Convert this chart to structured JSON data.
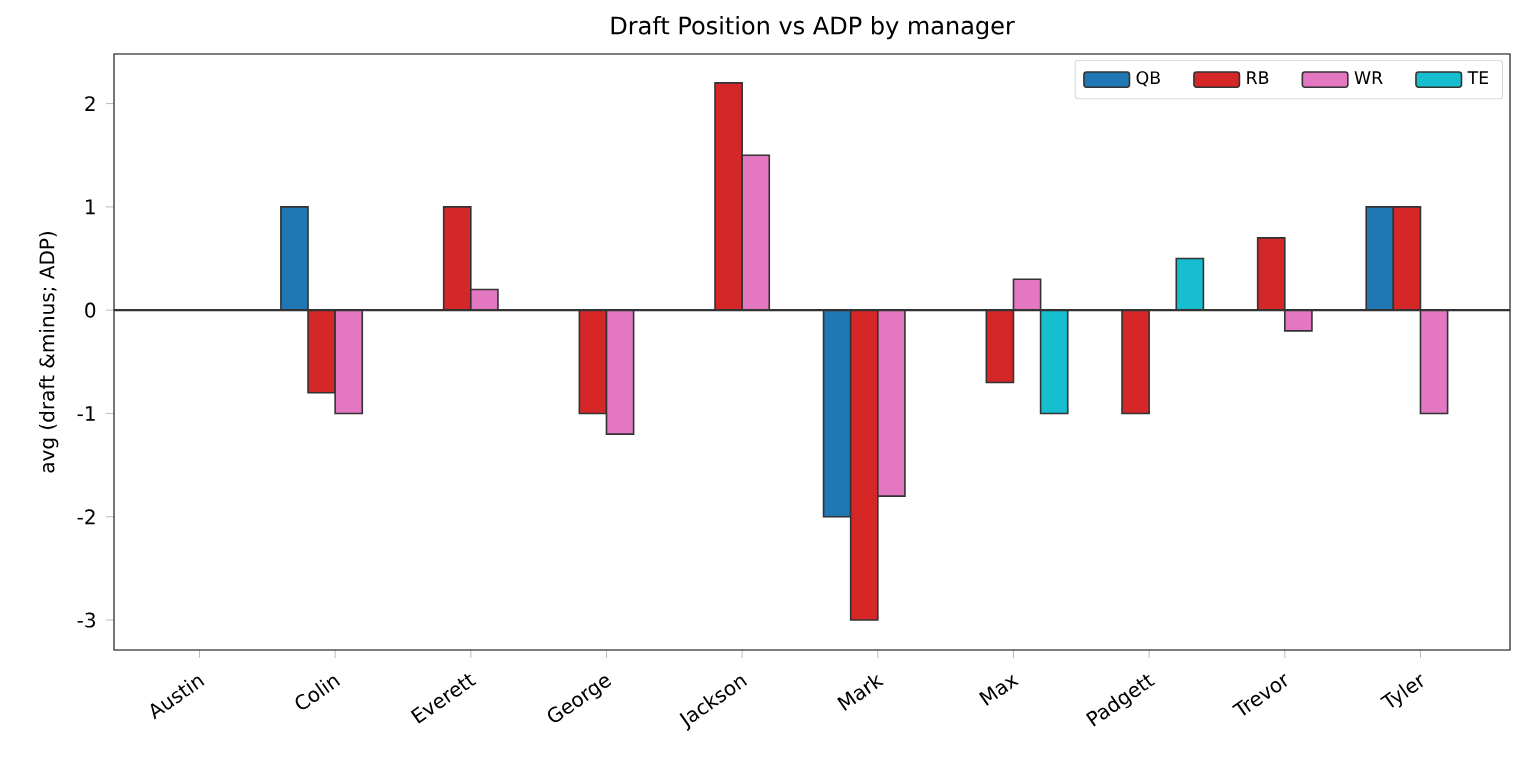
{
  "chart_data": {
    "type": "bar",
    "title": "Draft Position vs ADP by manager",
    "ylabel": "avg (draft &minus; ADP)",
    "categories": [
      "Austin",
      "Colin",
      "Everett",
      "George",
      "Jackson",
      "Mark",
      "Max",
      "Padgett",
      "Trevor",
      "Tyler"
    ],
    "series": [
      {
        "name": "QB",
        "color": "#1f77b4",
        "values": [
          0,
          1,
          0,
          0,
          0,
          -2,
          0,
          0,
          0,
          1
        ]
      },
      {
        "name": "RB",
        "color": "#d62728",
        "values": [
          0,
          -0.8,
          1,
          -1,
          2.2,
          -3,
          -0.7,
          -1,
          0.7,
          1
        ]
      },
      {
        "name": "WR",
        "color": "#e377c2",
        "values": [
          0,
          -1,
          0.2,
          -1.2,
          1.5,
          -1.8,
          0.3,
          0,
          -0.2,
          -1
        ]
      },
      {
        "name": "TE",
        "color": "#17becf",
        "values": [
          0,
          0,
          0,
          0,
          0,
          0,
          -1,
          0.5,
          0,
          0
        ]
      }
    ],
    "ylim": [
      -3.29,
      2.48
    ],
    "yticks": [
      -3,
      -2,
      -1,
      0,
      1,
      2
    ],
    "ref_lines": [
      {
        "axis": "y",
        "value": 0,
        "color": "#333333"
      }
    ],
    "grid": false,
    "legend": "top right"
  }
}
